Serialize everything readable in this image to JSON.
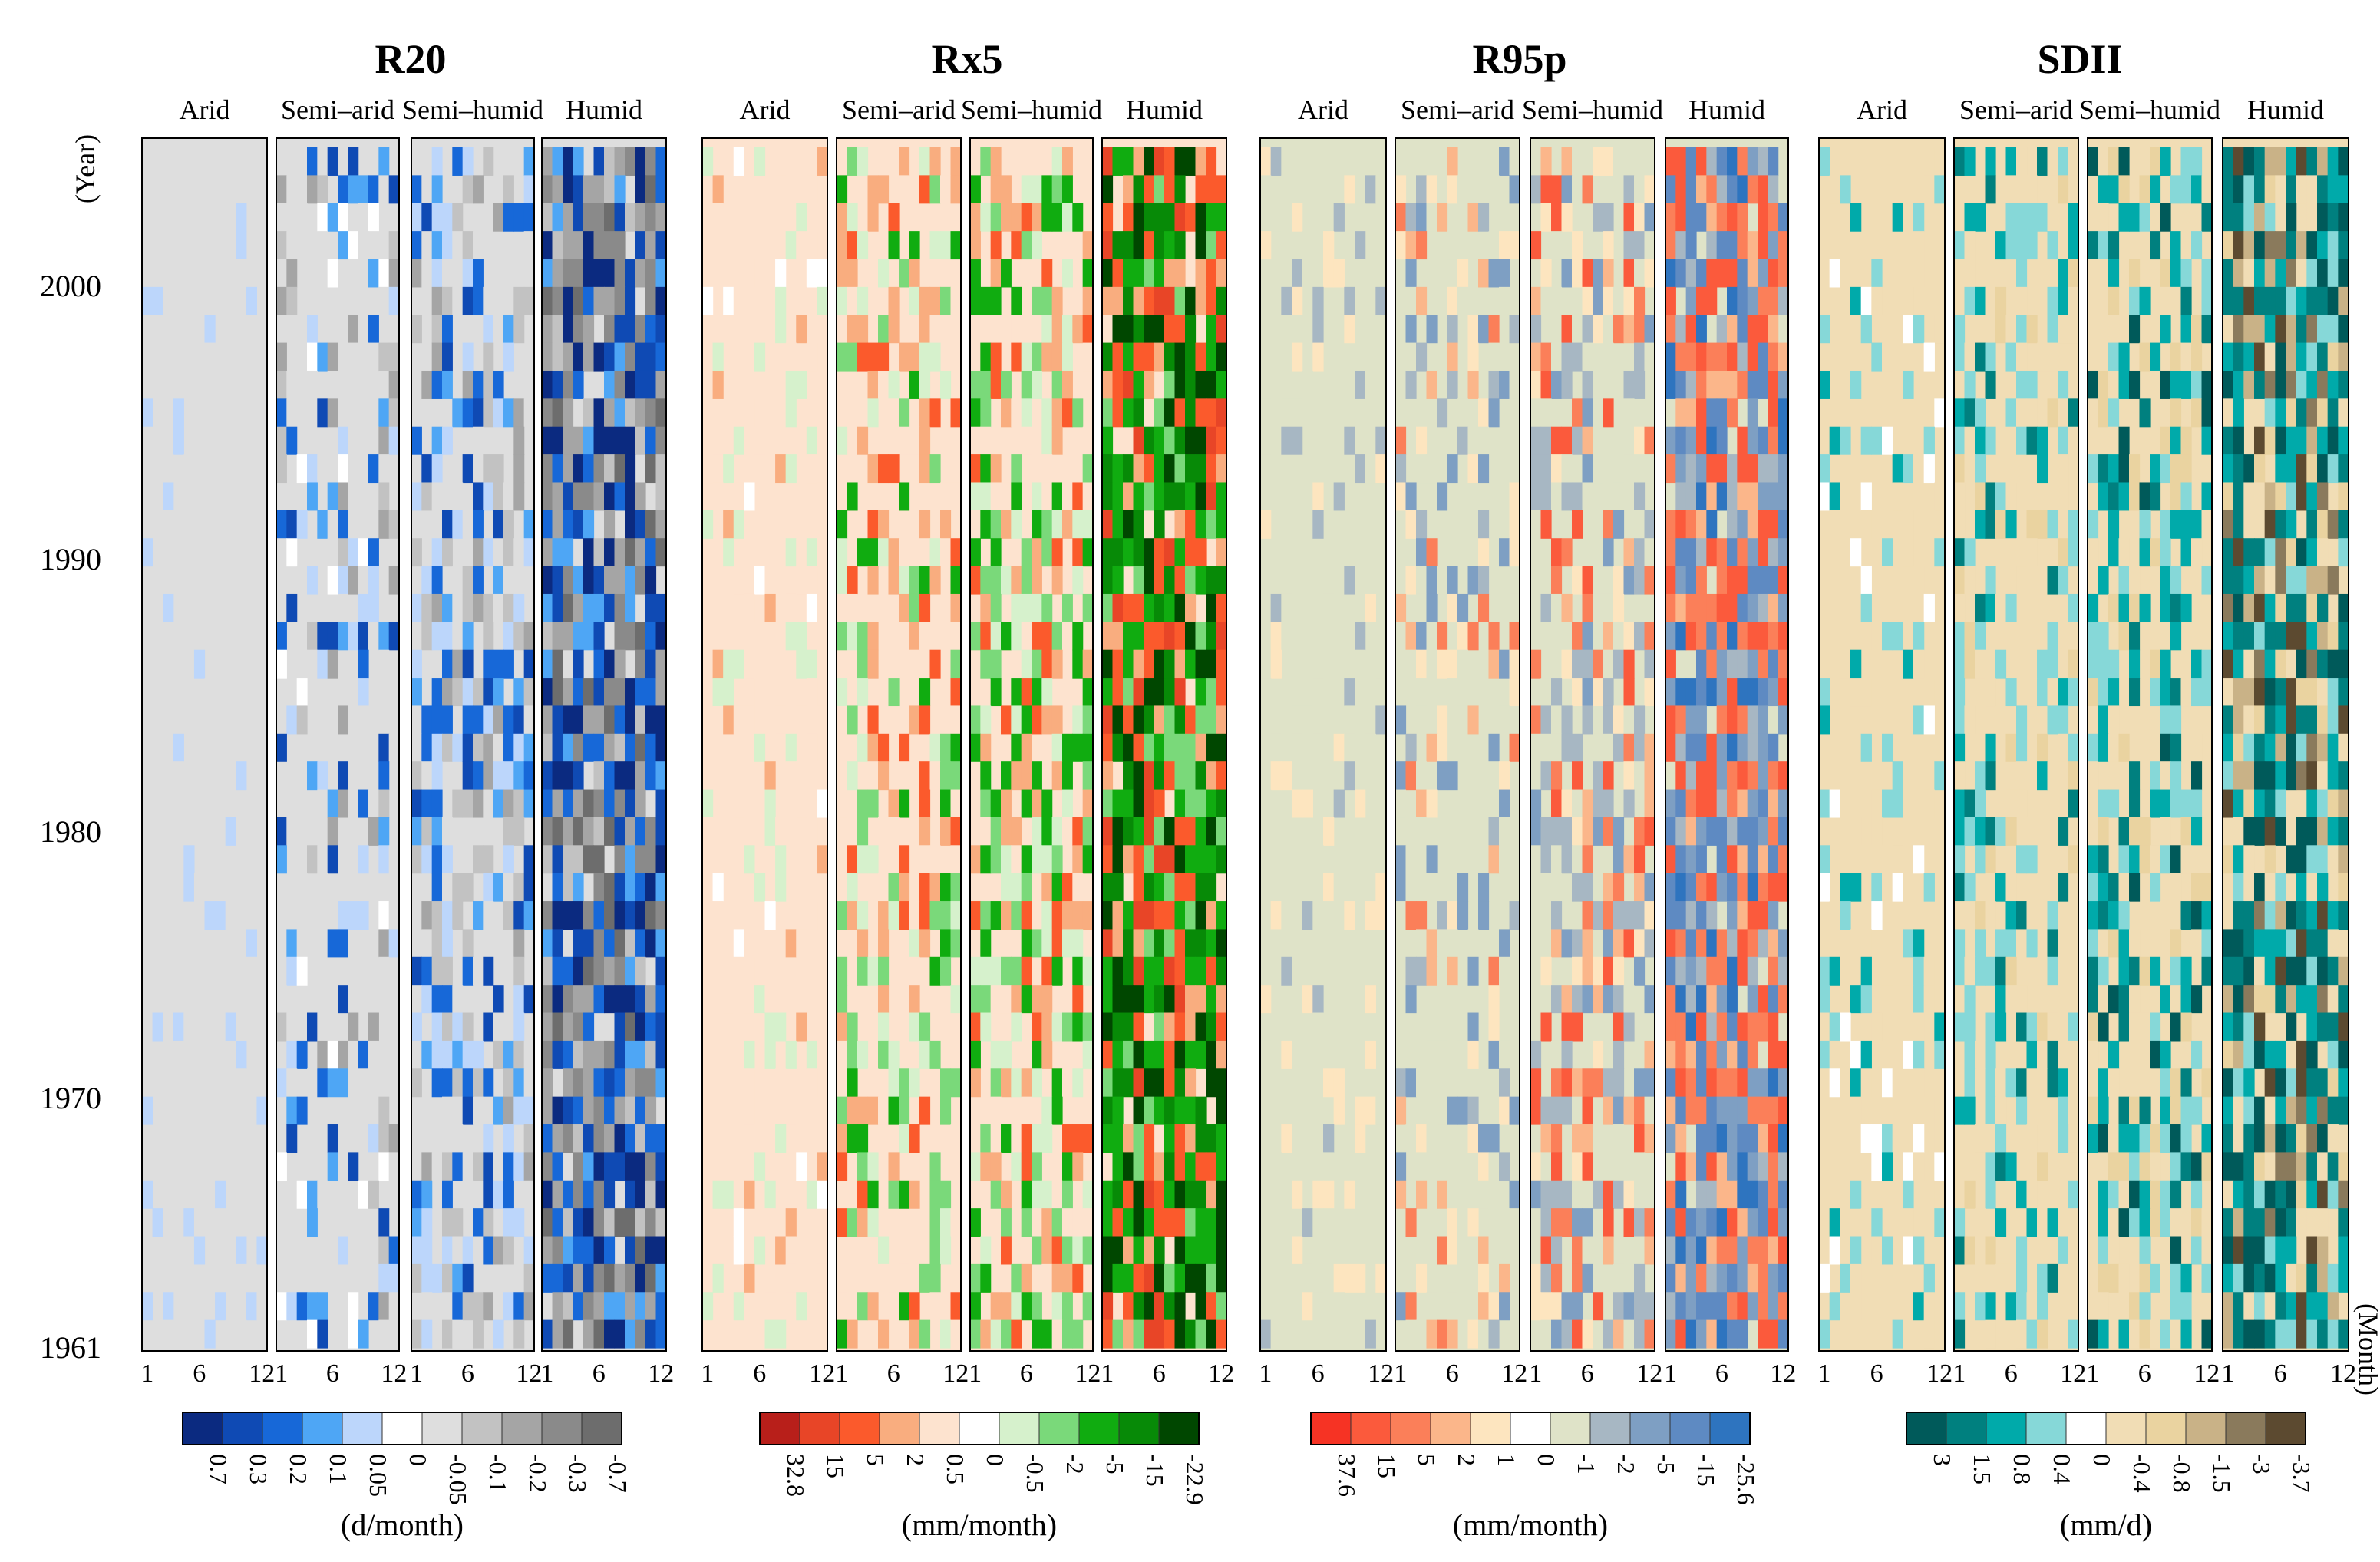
{
  "chart_data": {
    "type": "heatmap",
    "axis": {
      "y_label": "(Year)",
      "x_label": "(Month)",
      "year_ticks": [
        "2000",
        "1990",
        "1980",
        "1970",
        "1961"
      ],
      "year_range": [
        1961,
        2003
      ],
      "month_ticks": [
        "1",
        "6",
        "12"
      ],
      "month_range": [
        1,
        12
      ]
    },
    "regions": [
      "Arid",
      "Semi–arid",
      "Semi–humid",
      "Humid"
    ],
    "panels": [
      {
        "title": "R20",
        "unit": "(d/month)",
        "legend_labels": [
          "0.7",
          "0.3",
          "0.2",
          "0.1",
          "0.05",
          "0",
          "-0.05",
          "-0.1",
          "-0.2",
          "-0.3",
          "-0.7"
        ],
        "legend_colors": [
          "#0b2a80",
          "#0f4ab4",
          "#1768d8",
          "#4ea6f5",
          "#bcd6fb",
          "#ffffff",
          "#dedede",
          "#c2c2c2",
          "#a5a5a5",
          "#8a8a8a",
          "#6d6d6d"
        ]
      },
      {
        "title": "Rx5",
        "unit": "(mm/month)",
        "legend_labels": [
          "32.8",
          "15",
          "5",
          "2",
          "0.5",
          "0",
          "-0.5",
          "-2",
          "-5",
          "-15",
          "-22.9"
        ],
        "legend_colors": [
          "#b81f1a",
          "#e84527",
          "#fb5a2c",
          "#f9ad7f",
          "#fde3cf",
          "#ffffff",
          "#d6f1cc",
          "#7ad97a",
          "#10ac10",
          "#078a07",
          "#004700"
        ]
      },
      {
        "title": "R95p",
        "unit": "(mm/month)",
        "legend_labels": [
          "37.6",
          "15",
          "5",
          "2",
          "1",
          "0",
          "-1",
          "-2",
          "-5",
          "-15",
          "-25.6"
        ],
        "legend_colors": [
          "#f63324",
          "#fb5a3c",
          "#fb7f59",
          "#fbb68a",
          "#fde5bf",
          "#ffffff",
          "#dfe3c8",
          "#a7b7c3",
          "#7e9fc3",
          "#5e8ac2",
          "#2e74bf"
        ]
      },
      {
        "title": "SDII",
        "unit": "(mm/d)",
        "legend_labels": [
          "3",
          "1.5",
          "0.8",
          "0.4",
          "0",
          "-0.4",
          "-0.8",
          "-1.5",
          "-3",
          "-3.7"
        ],
        "legend_colors": [
          "#005a5a",
          "#00807f",
          "#00aaaa",
          "#86d8d8",
          "#ffffff",
          "#f1ddb5",
          "#ead3a0",
          "#c9b287",
          "#8a7a5c",
          "#5c4a30"
        ]
      }
    ]
  }
}
